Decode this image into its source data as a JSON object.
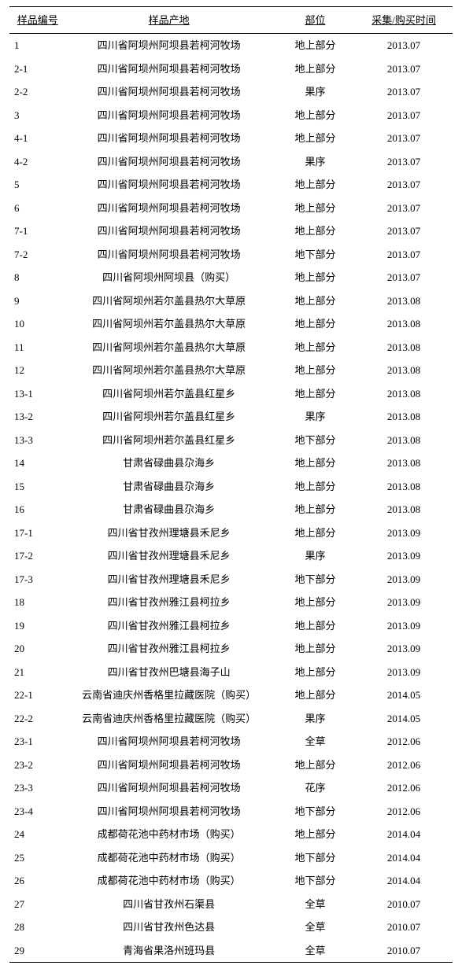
{
  "table": {
    "headers": {
      "id": "样品编号",
      "place": "样品产地",
      "part": "部位",
      "date": "采集/购买时间"
    },
    "rows": [
      {
        "id": "1",
        "place": "四川省阿坝州阿坝县若柯河牧场",
        "part": "地上部分",
        "date": "2013.07"
      },
      {
        "id": "2-1",
        "place": "四川省阿坝州阿坝县若柯河牧场",
        "part": "地上部分",
        "date": "2013.07"
      },
      {
        "id": "2-2",
        "place": "四川省阿坝州阿坝县若柯河牧场",
        "part": "果序",
        "date": "2013.07"
      },
      {
        "id": "3",
        "place": "四川省阿坝州阿坝县若柯河牧场",
        "part": "地上部分",
        "date": "2013.07"
      },
      {
        "id": "4-1",
        "place": "四川省阿坝州阿坝县若柯河牧场",
        "part": "地上部分",
        "date": "2013.07"
      },
      {
        "id": "4-2",
        "place": "四川省阿坝州阿坝县若柯河牧场",
        "part": "果序",
        "date": "2013.07"
      },
      {
        "id": "5",
        "place": "四川省阿坝州阿坝县若柯河牧场",
        "part": "地上部分",
        "date": "2013.07"
      },
      {
        "id": "6",
        "place": "四川省阿坝州阿坝县若柯河牧场",
        "part": "地上部分",
        "date": "2013.07"
      },
      {
        "id": "7-1",
        "place": "四川省阿坝州阿坝县若柯河牧场",
        "part": "地上部分",
        "date": "2013.07"
      },
      {
        "id": "7-2",
        "place": "四川省阿坝州阿坝县若柯河牧场",
        "part": "地下部分",
        "date": "2013.07"
      },
      {
        "id": "8",
        "place": "四川省阿坝州阿坝县（购买）",
        "part": "地上部分",
        "date": "2013.07"
      },
      {
        "id": "9",
        "place": "四川省阿坝州若尔盖县热尔大草原",
        "part": "地上部分",
        "date": "2013.08"
      },
      {
        "id": "10",
        "place": "四川省阿坝州若尔盖县热尔大草原",
        "part": "地上部分",
        "date": "2013.08"
      },
      {
        "id": "11",
        "place": "四川省阿坝州若尔盖县热尔大草原",
        "part": "地上部分",
        "date": "2013.08"
      },
      {
        "id": "12",
        "place": "四川省阿坝州若尔盖县热尔大草原",
        "part": "地上部分",
        "date": "2013.08"
      },
      {
        "id": "13-1",
        "place": "四川省阿坝州若尔盖县红星乡",
        "part": "地上部分",
        "date": "2013.08"
      },
      {
        "id": "13-2",
        "place": "四川省阿坝州若尔盖县红星乡",
        "part": "果序",
        "date": "2013.08"
      },
      {
        "id": "13-3",
        "place": "四川省阿坝州若尔盖县红星乡",
        "part": "地下部分",
        "date": "2013.08"
      },
      {
        "id": "14",
        "place": "甘肃省碌曲县尕海乡",
        "part": "地上部分",
        "date": "2013.08"
      },
      {
        "id": "15",
        "place": "甘肃省碌曲县尕海乡",
        "part": "地上部分",
        "date": "2013.08"
      },
      {
        "id": "16",
        "place": "甘肃省碌曲县尕海乡",
        "part": "地上部分",
        "date": "2013.08"
      },
      {
        "id": "17-1",
        "place": "四川省甘孜州理塘县禾尼乡",
        "part": "地上部分",
        "date": "2013.09"
      },
      {
        "id": "17-2",
        "place": "四川省甘孜州理塘县禾尼乡",
        "part": "果序",
        "date": "2013.09"
      },
      {
        "id": "17-3",
        "place": "四川省甘孜州理塘县禾尼乡",
        "part": "地下部分",
        "date": "2013.09"
      },
      {
        "id": "18",
        "place": "四川省甘孜州雅江县柯拉乡",
        "part": "地上部分",
        "date": "2013.09"
      },
      {
        "id": "19",
        "place": "四川省甘孜州雅江县柯拉乡",
        "part": "地上部分",
        "date": "2013.09"
      },
      {
        "id": "20",
        "place": "四川省甘孜州雅江县柯拉乡",
        "part": "地上部分",
        "date": "2013.09"
      },
      {
        "id": "21",
        "place": "四川省甘孜州巴塘县海子山",
        "part": "地上部分",
        "date": "2013.09"
      },
      {
        "id": "22-1",
        "place": "云南省迪庆州香格里拉藏医院（购买）",
        "part": "地上部分",
        "date": "2014.05"
      },
      {
        "id": "22-2",
        "place": "云南省迪庆州香格里拉藏医院（购买）",
        "part": "果序",
        "date": "2014.05"
      },
      {
        "id": "23-1",
        "place": "四川省阿坝州阿坝县若柯河牧场",
        "part": "全草",
        "date": "2012.06"
      },
      {
        "id": "23-2",
        "place": "四川省阿坝州阿坝县若柯河牧场",
        "part": "地上部分",
        "date": "2012.06"
      },
      {
        "id": "23-3",
        "place": "四川省阿坝州阿坝县若柯河牧场",
        "part": "花序",
        "date": "2012.06"
      },
      {
        "id": "23-4",
        "place": "四川省阿坝州阿坝县若柯河牧场",
        "part": "地下部分",
        "date": "2012.06"
      },
      {
        "id": "24",
        "place": "成都荷花池中药材市场（购买）",
        "part": "地上部分",
        "date": "2014.04"
      },
      {
        "id": "25",
        "place": "成都荷花池中药材市场（购买）",
        "part": "地下部分",
        "date": "2014.04"
      },
      {
        "id": "26",
        "place": "成都荷花池中药材市场（购买）",
        "part": "地下部分",
        "date": "2014.04"
      },
      {
        "id": "27",
        "place": "四川省甘孜州石渠县",
        "part": "全草",
        "date": "2010.07"
      },
      {
        "id": "28",
        "place": "四川省甘孜州色达县",
        "part": "全草",
        "date": "2010.07"
      },
      {
        "id": "29",
        "place": "青海省果洛州班玛县",
        "part": "全草",
        "date": "2010.07"
      }
    ]
  }
}
